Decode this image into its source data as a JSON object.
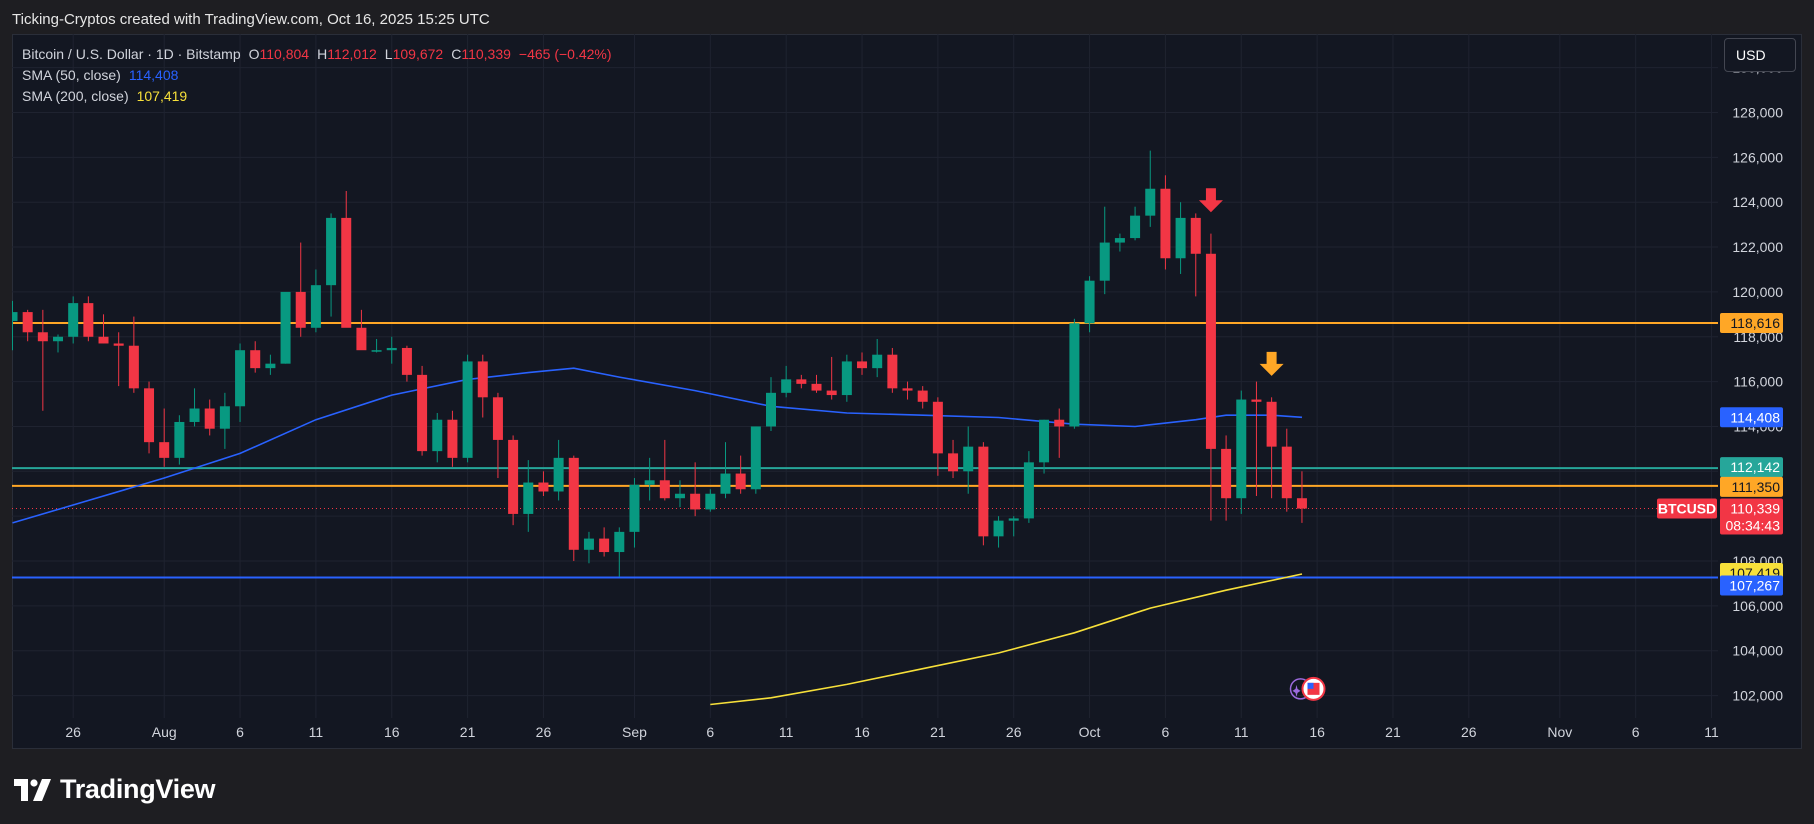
{
  "header": {
    "attribution": "Ticking-Cryptos created with TradingView.com, Oct 16, 2025 15:25 UTC"
  },
  "legend": {
    "symbol": "Bitcoin / U.S. Dollar · 1D · Bitstamp",
    "open_label": "O",
    "open": "110,804",
    "high_label": "H",
    "high": "112,012",
    "low_label": "L",
    "low": "109,672",
    "close_label": "C",
    "close": "110,339",
    "change": "−465 (−0.42%)",
    "sma50_label": "SMA (50, close)",
    "sma50_value": "114,408",
    "sma200_label": "SMA (200, close)",
    "sma200_value": "107,419"
  },
  "currency_button": "USD",
  "footer": {
    "brand": "TradingView"
  },
  "colors": {
    "bull": "#089981",
    "bear": "#f23645",
    "sma50": "#2962ff",
    "sma200": "#f7e03a",
    "orange": "#ffa726",
    "teal_line": "#26a69a",
    "blue_line": "#2962ff"
  },
  "chart_data": {
    "type": "candlestick",
    "y_axis": {
      "ylim": [
        101000,
        131500
      ],
      "ticks": [
        102000,
        104000,
        106000,
        108000,
        110000,
        112000,
        114000,
        116000,
        118000,
        120000,
        122000,
        124000,
        126000,
        128000,
        130000
      ],
      "tick_labels": [
        "102,000",
        "104,000",
        "106,000",
        "108,000",
        "110,000",
        "112,000",
        "114,000",
        "116,000",
        "118,000",
        "120,000",
        "122,000",
        "124,000",
        "126,000",
        "128,000",
        "130,000"
      ]
    },
    "x_axis": {
      "tick_labels": [
        "26",
        "Aug",
        "6",
        "11",
        "16",
        "21",
        "26",
        "Sep",
        "6",
        "11",
        "16",
        "21",
        "26",
        "Oct",
        "6",
        "11",
        "16",
        "21",
        "26",
        "Nov",
        "6",
        "11"
      ],
      "tick_dates": [
        "2025-07-26",
        "2025-08-01",
        "2025-08-06",
        "2025-08-11",
        "2025-08-16",
        "2025-08-21",
        "2025-08-26",
        "2025-09-01",
        "2025-09-06",
        "2025-09-11",
        "2025-09-16",
        "2025-09-21",
        "2025-09-26",
        "2025-10-01",
        "2025-10-06",
        "2025-10-11",
        "2025-10-16",
        "2025-10-21",
        "2025-10-26",
        "2025-11-01",
        "2025-11-06",
        "2025-11-11"
      ]
    },
    "candle_dates_start": "2025-07-22",
    "candles": [
      [
        118700,
        119600,
        117400,
        119100
      ],
      [
        119100,
        119200,
        117800,
        118200
      ],
      [
        118200,
        119200,
        114700,
        117800
      ],
      [
        117800,
        118100,
        117300,
        118000
      ],
      [
        118000,
        119800,
        117700,
        119500
      ],
      [
        119500,
        119800,
        117800,
        118000
      ],
      [
        118000,
        119000,
        117700,
        117700
      ],
      [
        117700,
        118200,
        115800,
        117600
      ],
      [
        117600,
        118900,
        115500,
        115700
      ],
      [
        115700,
        116000,
        112800,
        113300
      ],
      [
        113300,
        114800,
        112200,
        112600
      ],
      [
        112600,
        114500,
        112300,
        114200
      ],
      [
        114200,
        115700,
        114000,
        114800
      ],
      [
        114800,
        115200,
        113600,
        113900
      ],
      [
        113900,
        115500,
        113000,
        114900
      ],
      [
        114900,
        117700,
        114200,
        117400
      ],
      [
        117400,
        117800,
        116400,
        116600
      ],
      [
        116600,
        117200,
        116300,
        116800
      ],
      [
        116800,
        119800,
        116800,
        120000
      ],
      [
        120000,
        122200,
        118000,
        118400
      ],
      [
        118400,
        121000,
        118200,
        120300
      ],
      [
        120300,
        123500,
        118900,
        123300
      ],
      [
        123300,
        124500,
        118600,
        118400
      ],
      [
        118400,
        119200,
        117700,
        117400
      ],
      [
        117400,
        117900,
        117300,
        117400
      ],
      [
        117400,
        118000,
        116800,
        117500
      ],
      [
        117500,
        117600,
        116000,
        116300
      ],
      [
        116300,
        116700,
        112700,
        112900
      ],
      [
        112900,
        114600,
        112400,
        114300
      ],
      [
        114300,
        114700,
        112200,
        112600
      ],
      [
        112600,
        117200,
        112400,
        116900
      ],
      [
        116900,
        117200,
        114400,
        115300
      ],
      [
        115300,
        115500,
        111700,
        113400
      ],
      [
        113400,
        113600,
        109600,
        110100
      ],
      [
        110100,
        112500,
        109300,
        111500
      ],
      [
        111500,
        112000,
        110900,
        111100
      ],
      [
        111100,
        113400,
        110700,
        112600
      ],
      [
        112600,
        112700,
        108000,
        108500
      ],
      [
        108500,
        109300,
        107900,
        109000
      ],
      [
        109000,
        109500,
        108200,
        108400
      ],
      [
        108400,
        109500,
        107300,
        109300
      ],
      [
        109300,
        111700,
        108600,
        111400
      ],
      [
        111400,
        112600,
        110700,
        111600
      ],
      [
        111600,
        113400,
        110700,
        110800
      ],
      [
        110800,
        111600,
        110400,
        111000
      ],
      [
        111000,
        112400,
        110000,
        110300
      ],
      [
        110300,
        111200,
        110200,
        111000
      ],
      [
        111000,
        113300,
        110800,
        111900
      ],
      [
        111900,
        112700,
        111000,
        111200
      ],
      [
        111200,
        114000,
        111000,
        114000
      ],
      [
        114000,
        116200,
        113800,
        115500
      ],
      [
        115500,
        116700,
        115300,
        116100
      ],
      [
        116100,
        116300,
        115700,
        115900
      ],
      [
        115900,
        116300,
        115500,
        115600
      ],
      [
        115600,
        117100,
        115200,
        115400
      ],
      [
        115400,
        117200,
        115100,
        116900
      ],
      [
        116900,
        117300,
        116300,
        116600
      ],
      [
        116600,
        117900,
        116200,
        117200
      ],
      [
        117200,
        117500,
        115500,
        115700
      ],
      [
        115700,
        116000,
        115200,
        115600
      ],
      [
        115600,
        115800,
        114800,
        115100
      ],
      [
        115100,
        115300,
        111800,
        112800
      ],
      [
        112800,
        113400,
        111700,
        112000
      ],
      [
        112000,
        114000,
        111000,
        113100
      ],
      [
        113100,
        113300,
        108700,
        109100
      ],
      [
        109100,
        110000,
        108600,
        109800
      ],
      [
        109800,
        110000,
        109100,
        109900
      ],
      [
        109900,
        112900,
        109700,
        112400
      ],
      [
        112400,
        114300,
        111900,
        114300
      ],
      [
        114300,
        114800,
        112600,
        114000
      ],
      [
        114000,
        118800,
        113900,
        118600
      ],
      [
        118600,
        120700,
        118200,
        120500
      ],
      [
        120500,
        123800,
        119900,
        122200
      ],
      [
        122200,
        122600,
        121800,
        122400
      ],
      [
        122400,
        123800,
        122300,
        123400
      ],
      [
        123400,
        126300,
        122900,
        124600
      ],
      [
        124600,
        125200,
        121000,
        121500
      ],
      [
        121500,
        124000,
        120800,
        123300
      ],
      [
        123300,
        123500,
        119800,
        121700
      ],
      [
        121700,
        122600,
        109800,
        113000
      ],
      [
        113000,
        113600,
        109800,
        110800
      ],
      [
        110800,
        115600,
        110100,
        115200
      ],
      [
        115200,
        116000,
        110900,
        115100
      ],
      [
        115100,
        115300,
        110800,
        113100
      ],
      [
        113100,
        113900,
        110200,
        110800
      ],
      [
        110800,
        112000,
        109700,
        110339
      ]
    ],
    "sma50": [
      [
        0,
        109700
      ],
      [
        5,
        110700
      ],
      [
        10,
        111700
      ],
      [
        15,
        112800
      ],
      [
        20,
        114300
      ],
      [
        25,
        115400
      ],
      [
        30,
        116100
      ],
      [
        34,
        116400
      ],
      [
        37,
        116600
      ],
      [
        40,
        116200
      ],
      [
        45,
        115600
      ],
      [
        50,
        114900
      ],
      [
        55,
        114600
      ],
      [
        60,
        114500
      ],
      [
        65,
        114400
      ],
      [
        70,
        114100
      ],
      [
        74,
        114000
      ],
      [
        78,
        114300
      ],
      [
        80,
        114500
      ],
      [
        83,
        114500
      ],
      [
        85,
        114408
      ]
    ],
    "sma200": [
      [
        46,
        101600
      ],
      [
        50,
        101900
      ],
      [
        55,
        102500
      ],
      [
        60,
        103200
      ],
      [
        65,
        103900
      ],
      [
        70,
        104800
      ],
      [
        75,
        105900
      ],
      [
        80,
        106700
      ],
      [
        85,
        107419
      ]
    ],
    "horizontal_levels": [
      {
        "value": 118616,
        "label": "118,616",
        "color": "#ffa726"
      },
      {
        "value": 112142,
        "label": "112,142",
        "color": "#26a69a"
      },
      {
        "value": 111350,
        "label": "111,350",
        "color": "#ffa726"
      },
      {
        "value": 107267,
        "label": "107,267",
        "color": "#2962ff"
      }
    ],
    "price_tags": {
      "sma50": {
        "value": 114408,
        "label": "114,408"
      },
      "sma200": {
        "value": 107419,
        "label": "107,419"
      },
      "last": {
        "value": 110339,
        "label": "110,339",
        "symbol": "BTCUSD",
        "countdown": "08:34:43"
      }
    },
    "annotations": [
      {
        "type": "down-arrow",
        "candle_index": 79,
        "value": 124000,
        "color": "#f23645"
      },
      {
        "type": "down-arrow",
        "candle_index": 83,
        "value": 116700,
        "color": "#ffa726"
      }
    ]
  }
}
